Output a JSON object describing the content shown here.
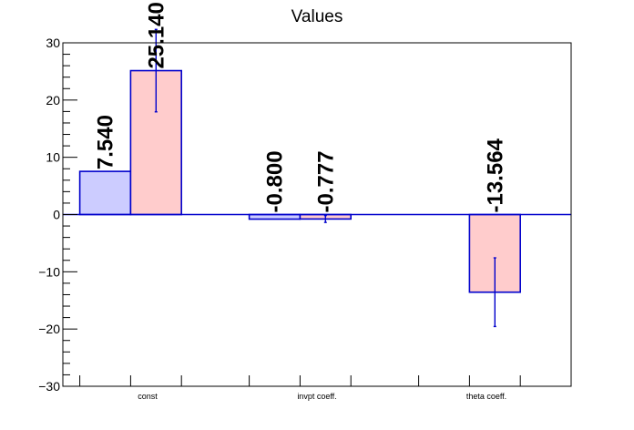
{
  "chart_data": {
    "type": "bar",
    "title": "Values",
    "xlabel": "",
    "ylabel": "",
    "ylim": [
      -30,
      30
    ],
    "yticks": [
      -30,
      -20,
      -10,
      0,
      10,
      20,
      30
    ],
    "yticks_text": [
      "−30",
      "−20",
      "−10",
      "0",
      "10",
      "20",
      "30"
    ],
    "categories": [
      "const",
      "invpt coeff.",
      "theta coeff."
    ],
    "grid": false,
    "legend": "none",
    "series": [
      {
        "fill": "#ccccff",
        "edge": "#0000cc",
        "values": [
          7.54,
          -0.8,
          null
        ],
        "errors": [
          null,
          null,
          null
        ],
        "labels": [
          "7.540",
          "-0.800",
          ""
        ]
      },
      {
        "fill": "#ffcccc",
        "edge": "#0000cc",
        "values": [
          25.14,
          -0.777,
          -13.564
        ],
        "errors": [
          7.2,
          0.6,
          6.0
        ],
        "labels": [
          "25.140",
          "-0.777",
          "-13.564"
        ]
      }
    ]
  }
}
